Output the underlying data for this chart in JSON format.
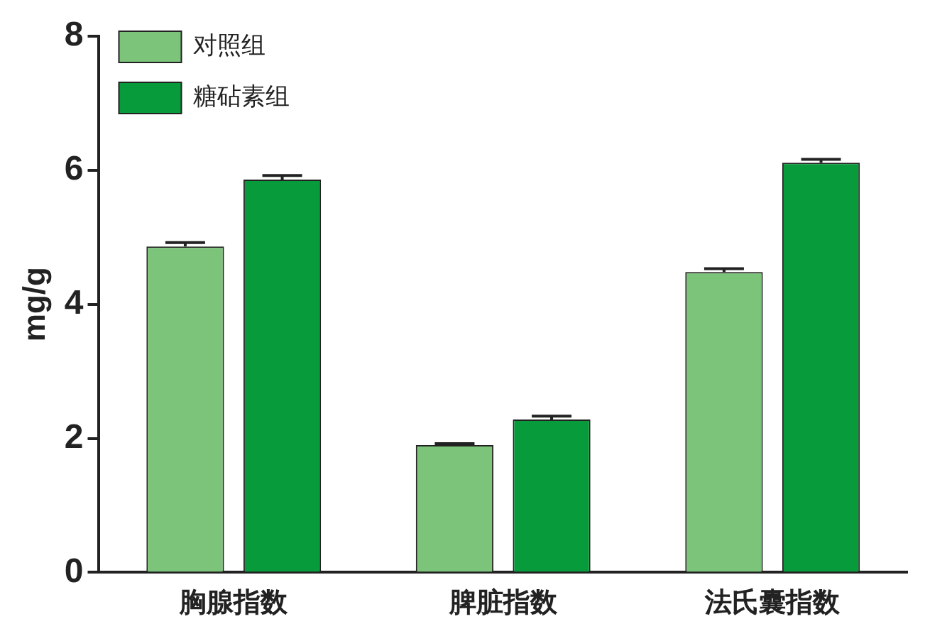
{
  "chart_data": {
    "type": "bar",
    "ylabel": "mg/g",
    "categories": [
      "胸腺指数",
      "脾脏指数",
      "法氏囊指数"
    ],
    "series": [
      {
        "name": "对照组",
        "color": "#7cc47a",
        "values": [
          4.86,
          1.9,
          4.48
        ],
        "errors": [
          [
            4.86,
            4.92
          ],
          [
            1.9,
            1.92
          ],
          [
            4.48,
            4.53
          ]
        ]
      },
      {
        "name": "糖砧素组",
        "color": "#079b3b",
        "values": [
          5.86,
          2.28,
          6.11
        ],
        "errors": [
          [
            5.86,
            5.92
          ],
          [
            2.28,
            2.33
          ],
          [
            6.11,
            6.16
          ]
        ]
      }
    ],
    "ylim": [
      0,
      8
    ],
    "yticks": [
      0,
      2,
      4,
      6,
      8
    ],
    "grid": false,
    "legend": "top"
  }
}
